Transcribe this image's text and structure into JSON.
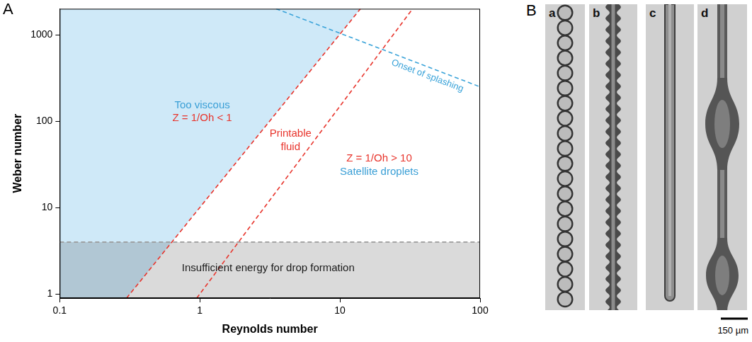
{
  "chart_data": {
    "type": "line",
    "panel": "A",
    "x_label": "Reynolds number",
    "y_label": "Weber number",
    "log": true,
    "grid": false,
    "xlim": [
      0.1,
      100
    ],
    "ylim": [
      0.9,
      2000
    ],
    "xticks": [
      0.1,
      1,
      10,
      100
    ],
    "yticks": [
      1,
      10,
      100,
      1000
    ],
    "series": [
      {
        "type": "area",
        "color": "#cfe9f8",
        "x": [
          0.3,
          14
        ],
        "values": [
          0.9,
          2000
        ]
      },
      {
        "type": "area",
        "color": "#dadada",
        "x": [
          0.1,
          100
        ],
        "values": [
          4,
          4
        ]
      },
      {
        "type": "line",
        "color": "#9b9b9b",
        "line_style": "dashed",
        "x": [
          0.1,
          100
        ],
        "values": [
          4,
          4
        ]
      },
      {
        "type": "line",
        "color": "#e8342c",
        "line_style": "dashed",
        "x": [
          0.3,
          14
        ],
        "values": [
          0.9,
          2000
        ]
      },
      {
        "type": "line",
        "color": "#e8342c",
        "line_style": "dashed",
        "x": [
          0.95,
          33
        ],
        "values": [
          0.9,
          2000
        ]
      },
      {
        "type": "line",
        "color": "#3aa3d9",
        "line_style": "dashed",
        "x": [
          3.5,
          100
        ],
        "values": [
          2000,
          250
        ]
      }
    ],
    "annotations": [
      {
        "text": "Too viscous",
        "color": "#3a9fd6"
      },
      {
        "text": "Z = 1/Oh < 1",
        "color": "#e8342c"
      },
      {
        "text": "Printable fluid",
        "color": "#e8342c"
      },
      {
        "text": "Z = 1/Oh > 10",
        "color": "#e8342c"
      },
      {
        "text": "Satellite droplets",
        "color": "#3a9fd6"
      },
      {
        "text": "Insufficient energy for drop formation",
        "color": "#1a1a1a"
      },
      {
        "text": "Onset of splashing",
        "color": "#3aa3d9"
      }
    ]
  },
  "panel_B": {
    "panel": "B",
    "images": [
      "a",
      "b",
      "c",
      "d"
    ],
    "scale_bar": "150 µm"
  }
}
